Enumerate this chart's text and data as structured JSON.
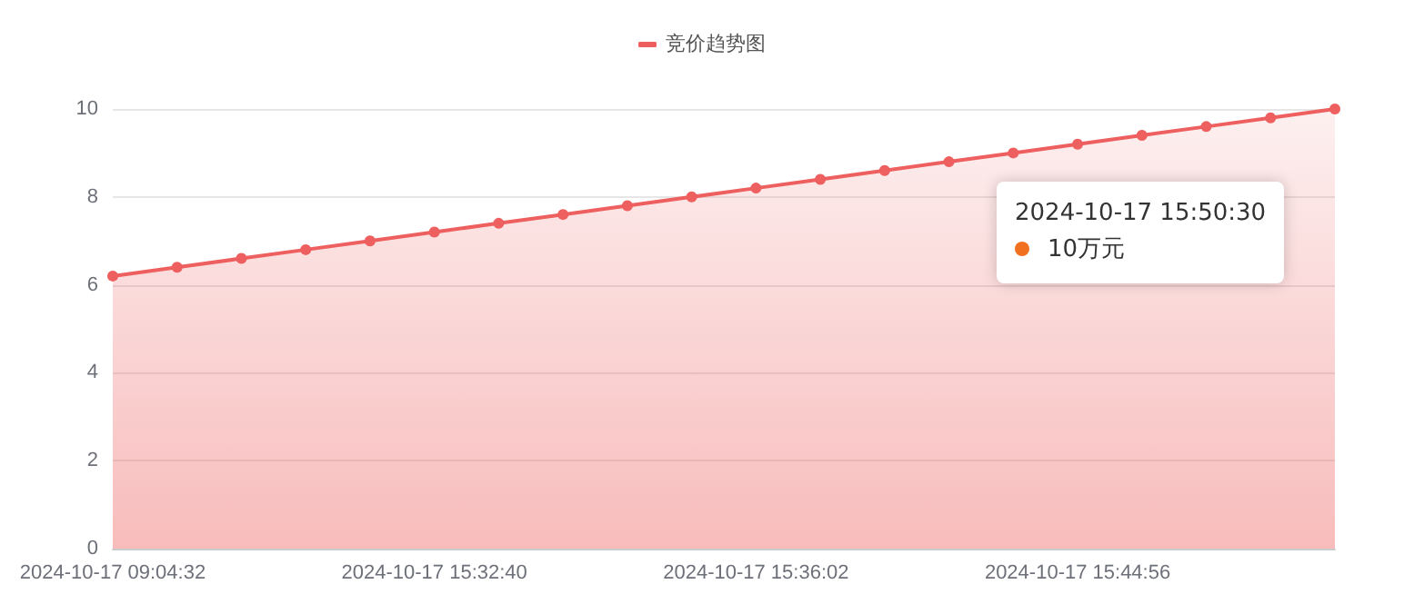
{
  "chart_data": {
    "type": "area",
    "categories": [
      "2024-10-17 09:04:32",
      null,
      null,
      null,
      null,
      "2024-10-17 15:32:40",
      null,
      null,
      null,
      null,
      "2024-10-17 15:36:02",
      null,
      null,
      null,
      null,
      "2024-10-17 15:44:56",
      null,
      null,
      null,
      null
    ],
    "series": [
      {
        "name": "竞价趋势图",
        "color": "#ee5f5f",
        "values": [
          6.2,
          6.4,
          6.6,
          6.8,
          7.0,
          7.2,
          7.4,
          7.6,
          7.8,
          8.0,
          8.2,
          8.4,
          8.6,
          8.8,
          9.0,
          9.2,
          9.4,
          9.6,
          9.8,
          10.0
        ]
      }
    ],
    "ylim": [
      0,
      10
    ],
    "yticks": [
      0,
      2,
      4,
      6,
      8,
      10
    ],
    "grid": "y",
    "legend": "top",
    "marker": "circle",
    "line_style": "solid",
    "annotations": [
      "2024-10-17 15:50:30",
      "10万元"
    ]
  }
}
